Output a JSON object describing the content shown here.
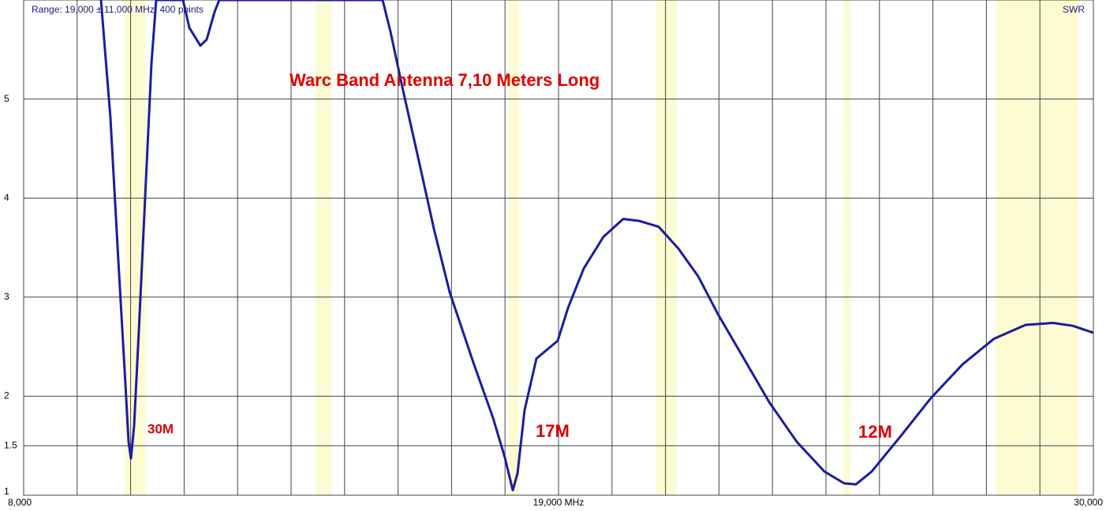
{
  "chart_data": {
    "type": "line",
    "title": "Warc Band Antenna 7,10 Meters Long",
    "range_label": "Range: 19,000 ± 11,000 MHz, 400 points",
    "ylabel": "SWR",
    "annotations": [
      "30M",
      "17M",
      "12M"
    ],
    "xlim": [
      8000,
      30000
    ],
    "xticks": [
      {
        "value": 8000,
        "label": "8,000"
      },
      {
        "value": 19000,
        "label": "19,000 MHz"
      },
      {
        "value": 30000,
        "label": "30,000"
      }
    ],
    "xminorticks": [
      9100,
      10200,
      11300,
      12400,
      13500,
      14600,
      15700,
      16800,
      17900,
      20100,
      21200,
      22300,
      23400,
      24500,
      25600,
      26700,
      27800,
      28900
    ],
    "ylim": [
      1,
      6
    ],
    "yticks": [
      1,
      1.5,
      2,
      3,
      4,
      5
    ],
    "grid": true,
    "bands": [
      [
        10080,
        10500
      ],
      [
        14000,
        14330
      ],
      [
        17980,
        18190
      ],
      [
        21000,
        21430
      ],
      [
        24860,
        25000
      ],
      [
        27990,
        29700
      ]
    ],
    "band_color": "#fdfbd2",
    "x": [
      9590,
      9785,
      9947,
      10077,
      10158,
      10207,
      10271,
      10369,
      10498,
      10628,
      10726,
      11277,
      11407,
      11634,
      11764,
      11926,
      12024,
      15382,
      15544,
      15788,
      16112,
      16437,
      16761,
      17248,
      17653,
      17897,
      18059,
      18157,
      18303,
      18546,
      18789,
      18984,
      19195,
      19519,
      19925,
      20331,
      20655,
      21060,
      21466,
      21872,
      22277,
      22764,
      23332,
      23900,
      24467,
      24873,
      25116,
      25441,
      26009,
      26658,
      27307,
      27956,
      28605,
      29173,
      29578,
      30000
    ],
    "series": [
      {
        "name": "SWR",
        "color": "#1c1ca0",
        "values": [
          6,
          4.81,
          3.37,
          2.26,
          1.54,
          1.37,
          1.7,
          2.66,
          4.01,
          5.36,
          6,
          6,
          5.72,
          5.54,
          5.6,
          5.88,
          6,
          6,
          5.68,
          5.12,
          4.41,
          3.69,
          3.05,
          2.34,
          1.78,
          1.38,
          1.05,
          1.22,
          1.86,
          2.38,
          2.48,
          2.56,
          2.89,
          3.29,
          3.61,
          3.79,
          3.77,
          3.71,
          3.49,
          3.21,
          2.83,
          2.42,
          1.94,
          1.54,
          1.24,
          1.12,
          1.11,
          1.24,
          1.58,
          1.98,
          2.32,
          2.58,
          2.72,
          2.74,
          2.71,
          2.64
        ]
      }
    ]
  }
}
